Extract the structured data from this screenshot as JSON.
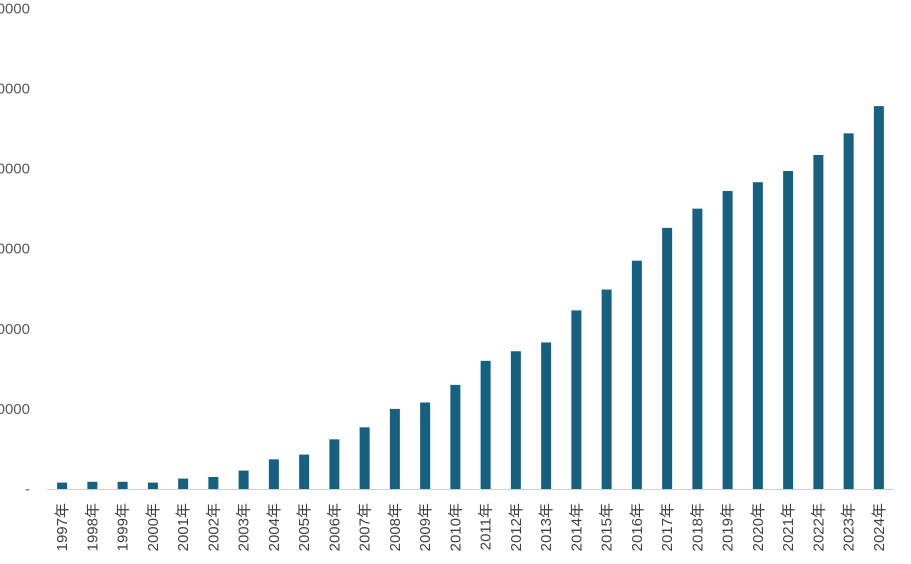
{
  "chart_data": {
    "type": "bar",
    "title": "",
    "xlabel": "",
    "ylabel": "",
    "ylim": [
      0,
      60000
    ],
    "y_ticks": [
      {
        "value": 0,
        "label": "-"
      },
      {
        "value": 10000,
        "label": "0000"
      },
      {
        "value": 20000,
        "label": "0000"
      },
      {
        "value": 30000,
        "label": "0000"
      },
      {
        "value": 40000,
        "label": "0000"
      },
      {
        "value": 50000,
        "label": "0000"
      },
      {
        "value": 60000,
        "label": "0000"
      }
    ],
    "grid": false,
    "legend": "none",
    "bar_color": "#17607F",
    "categories": [
      "1997年",
      "1998年",
      "1999年",
      "2000年",
      "2001年",
      "2002年",
      "2003年",
      "2004年",
      "2005年",
      "2006年",
      "2007年",
      "2008年",
      "2009年",
      "2010年",
      "2011年",
      "2012年",
      "2013年",
      "2014年",
      "2015年",
      "2016年",
      "2017年",
      "2018年",
      "2019年",
      "2020年",
      "2021年",
      "2022年",
      "2023年",
      "2024年"
    ],
    "values": [
      800,
      900,
      900,
      800,
      1300,
      1500,
      2300,
      3700,
      4300,
      6200,
      7700,
      10000,
      10800,
      13000,
      16000,
      17200,
      18300,
      22300,
      24900,
      28500,
      32600,
      35000,
      37200,
      38300,
      39700,
      41700,
      44400,
      47800
    ]
  }
}
